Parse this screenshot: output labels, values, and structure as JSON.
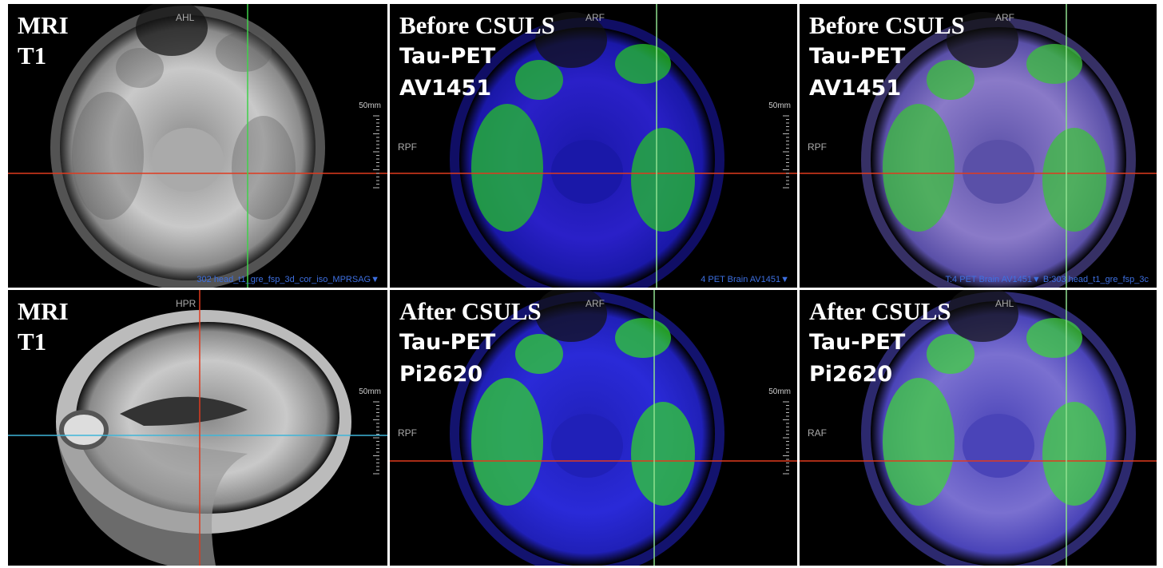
{
  "panels": [
    {
      "heading": [
        "MRI",
        "T1"
      ],
      "orientation": "AHL",
      "scale": "50mm",
      "footer": "302 head_t1_gre_fsp_3d_cor_iso_MPRSAG▼"
    },
    {
      "heading": [
        "Before CSULS"
      ],
      "lines": [
        "Tau-PET",
        "AV1451"
      ],
      "orientation": "ARF",
      "side": "RPF",
      "scale": "50mm",
      "footer": "4 PET Brain AV1451▼"
    },
    {
      "heading": [
        "Before CSULS"
      ],
      "lines": [
        "Tau-PET",
        "AV1451"
      ],
      "orientation": "ARF",
      "side": "RPF",
      "footer": "T:4 PET Brain AV1451▼  B:303 head_t1_gre_fsp_3c"
    },
    {
      "heading": [
        "MRI",
        "T1"
      ],
      "orientation": "HPR",
      "scale": "50mm"
    },
    {
      "heading": [
        "After CSULS"
      ],
      "lines": [
        "Tau-PET",
        "Pi2620"
      ],
      "orientation": "ARF",
      "side": "RPF",
      "scale": "50mm"
    },
    {
      "heading": [
        "After CSULS"
      ],
      "lines": [
        "Tau-PET",
        "Pi2620"
      ],
      "orientation": "AHL",
      "side": "RAF"
    }
  ]
}
